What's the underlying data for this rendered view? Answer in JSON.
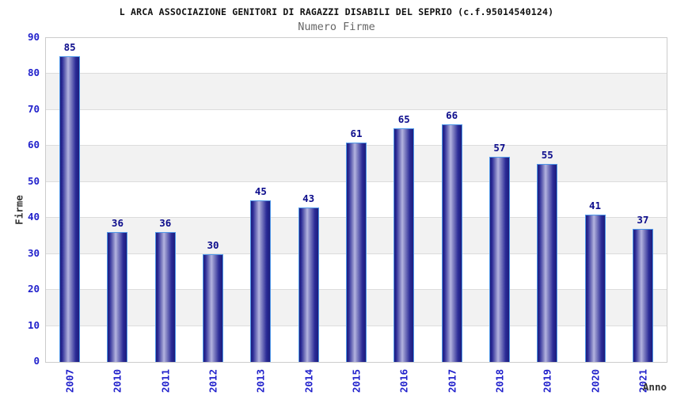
{
  "chart_data": {
    "type": "bar",
    "title": "L ARCA ASSOCIAZIONE GENITORI DI RAGAZZI DISABILI DEL SEPRIO (c.f.95014540124)",
    "subtitle": "Numero Firme",
    "xlabel": "Anno",
    "ylabel": "Firme",
    "categories": [
      "2007",
      "2010",
      "2011",
      "2012",
      "2013",
      "2014",
      "2015",
      "2016",
      "2017",
      "2018",
      "2019",
      "2020",
      "2021"
    ],
    "values": [
      85,
      36,
      36,
      30,
      45,
      43,
      61,
      65,
      66,
      57,
      55,
      41,
      37
    ],
    "ylim": [
      0,
      90
    ],
    "ytick_step": 10,
    "grid": true,
    "legend": false,
    "colors": {
      "title": "#111111",
      "subtitle": "#666666",
      "tick_label": "#2222cc",
      "value_label": "#0d0d8c",
      "axis_title": "#333333",
      "plot_border": "#cccccc",
      "grid_line": "#dcdcdc",
      "band": "#f2f2f2",
      "band_alt": "#ffffff",
      "bar_border": "#4f97e8",
      "bar_edge_dark": "#1d1d7c",
      "bar_dark": "#2a2a96",
      "bar_mid": "#8f8fca",
      "bar_highlight": "#b4b4e0"
    }
  }
}
